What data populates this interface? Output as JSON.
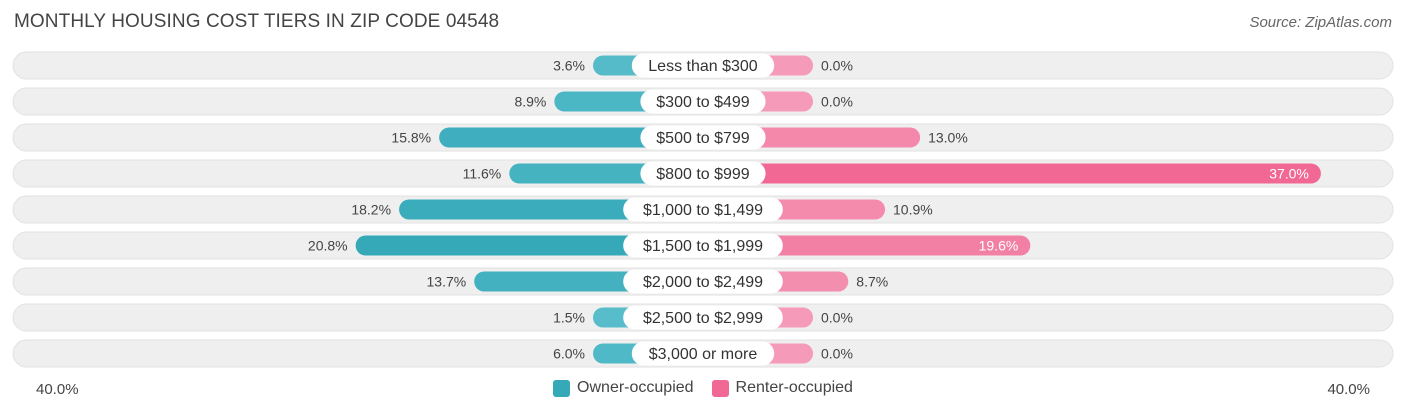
{
  "header": {
    "title": "MONTHLY HOUSING COST TIERS IN ZIP CODE 04548",
    "source": "Source: ZipAtlas.com"
  },
  "axis": {
    "left_label": "40.0%",
    "right_label": "40.0%"
  },
  "legend": {
    "owner_label": "Owner-occupied",
    "renter_label": "Renter-occupied"
  },
  "colors": {
    "owner": "#5bbfcc",
    "owner_strong": "#36a9b9",
    "renter": "#f59ab8",
    "renter_strong": "#f06893",
    "row_bg": "#efefef"
  },
  "chart_data": {
    "type": "bar",
    "orientation": "horizontal-diverging",
    "title": "MONTHLY HOUSING COST TIERS IN ZIP CODE 04548",
    "categories": [
      "Less than $300",
      "$300 to $499",
      "$500 to $799",
      "$800 to $999",
      "$1,000 to $1,499",
      "$1,500 to $1,999",
      "$2,000 to $2,499",
      "$2,500 to $2,999",
      "$3,000 or more"
    ],
    "series": [
      {
        "name": "Owner-occupied",
        "values": [
          3.6,
          8.9,
          15.8,
          11.6,
          18.2,
          20.8,
          13.7,
          1.5,
          6.0
        ]
      },
      {
        "name": "Renter-occupied",
        "values": [
          0.0,
          0.0,
          13.0,
          37.0,
          10.9,
          19.6,
          8.7,
          0.0,
          0.0
        ]
      }
    ],
    "xlim": [
      -40,
      40
    ],
    "value_format": "percent-1dp",
    "legend_position": "bottom-center"
  }
}
